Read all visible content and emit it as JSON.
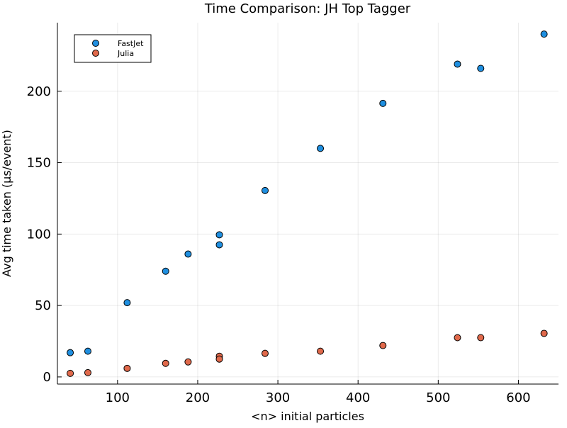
{
  "chart_data": {
    "type": "scatter",
    "title": "Time Comparison: JH Top Tagger",
    "xlabel": "<n> initial particles",
    "ylabel": "Avg time taken (μs/event)",
    "xlim": [
      25,
      650
    ],
    "ylim": [
      -5,
      248
    ],
    "x_ticks": [
      100,
      200,
      300,
      400,
      500,
      600
    ],
    "y_ticks": [
      0,
      50,
      100,
      150,
      200
    ],
    "grid": true,
    "legend_position": "top-left",
    "series": [
      {
        "name": "FastJet",
        "color": "#1f8fe0",
        "points": [
          [
            41,
            17
          ],
          [
            63,
            18
          ],
          [
            112,
            52
          ],
          [
            160,
            74
          ],
          [
            188,
            86
          ],
          [
            227,
            99.5
          ],
          [
            227,
            92.5
          ],
          [
            284,
            130.5
          ],
          [
            353,
            160
          ],
          [
            431,
            191.5
          ],
          [
            524,
            219
          ],
          [
            553,
            216
          ],
          [
            632,
            240
          ]
        ]
      },
      {
        "name": "Julia",
        "color": "#e0694b",
        "points": [
          [
            41,
            2.5
          ],
          [
            63,
            3
          ],
          [
            112,
            6
          ],
          [
            160,
            9.5
          ],
          [
            188,
            10.5
          ],
          [
            227,
            14.5
          ],
          [
            227,
            12.5
          ],
          [
            284,
            16.5
          ],
          [
            353,
            18
          ],
          [
            431,
            22
          ],
          [
            524,
            27.5
          ],
          [
            553,
            27.5
          ],
          [
            632,
            30.5
          ]
        ]
      }
    ]
  }
}
